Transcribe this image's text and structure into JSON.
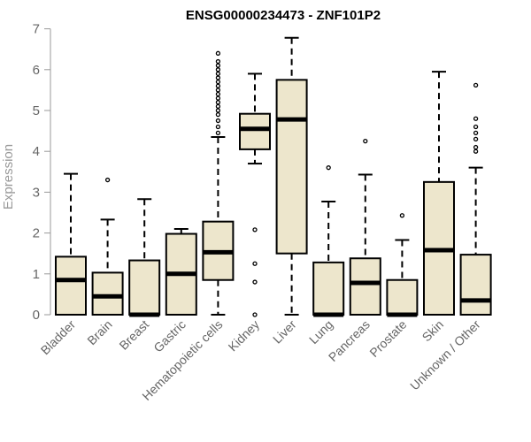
{
  "chart_data": {
    "type": "boxplot",
    "title": "ENSG00000234473 - ZNF101P2",
    "ylabel": "Expression",
    "xlabel": "",
    "ylim": [
      0,
      7
    ],
    "yticks": [
      0,
      1,
      2,
      3,
      4,
      5,
      6,
      7
    ],
    "grid": false,
    "box_fill": "#ede6cc",
    "categories": [
      "Bladder",
      "Brain",
      "Breast",
      "Gastric",
      "Hematopoietic cells",
      "Kidney",
      "Liver",
      "Lung",
      "Pancreas",
      "Prostate",
      "Skin",
      "Unknown / Other"
    ],
    "boxes": [
      {
        "min": 0,
        "q1": 0,
        "median": 0.85,
        "q3": 1.42,
        "max": 3.45,
        "outliers": []
      },
      {
        "min": 0,
        "q1": 0,
        "median": 0.45,
        "q3": 1.03,
        "max": 2.33,
        "outliers": [
          3.3
        ]
      },
      {
        "min": 0,
        "q1": 0,
        "median": 0,
        "q3": 1.33,
        "max": 2.83,
        "outliers": []
      },
      {
        "min": 0,
        "q1": 0,
        "median": 1.0,
        "q3": 1.98,
        "max": 2.1,
        "outliers": []
      },
      {
        "min": 0,
        "q1": 0.85,
        "median": 1.53,
        "q3": 2.28,
        "max": 4.35,
        "outliers": [
          4.45,
          4.6,
          4.75,
          4.9,
          5.0,
          5.1,
          5.2,
          5.3,
          5.4,
          5.5,
          5.6,
          5.7,
          5.8,
          5.9,
          6.0,
          6.1,
          6.2,
          6.4
        ]
      },
      {
        "min": 3.7,
        "q1": 4.05,
        "median": 4.55,
        "q3": 4.92,
        "max": 5.9,
        "outliers": [
          0,
          0.8,
          1.25,
          2.08
        ]
      },
      {
        "min": 0,
        "q1": 1.5,
        "median": 4.78,
        "q3": 5.75,
        "max": 6.78,
        "outliers": []
      },
      {
        "min": 0,
        "q1": 0,
        "median": 0,
        "q3": 1.28,
        "max": 2.77,
        "outliers": [
          3.6
        ]
      },
      {
        "min": 0,
        "q1": 0,
        "median": 0.78,
        "q3": 1.38,
        "max": 3.43,
        "outliers": [
          4.25
        ]
      },
      {
        "min": 0,
        "q1": 0,
        "median": 0,
        "q3": 0.85,
        "max": 1.83,
        "outliers": [
          2.43
        ]
      },
      {
        "min": 0,
        "q1": 0,
        "median": 1.58,
        "q3": 3.25,
        "max": 5.95,
        "outliers": []
      },
      {
        "min": 0,
        "q1": 0,
        "median": 0.35,
        "q3": 1.47,
        "max": 3.6,
        "outliers": [
          4.0,
          4.1,
          4.3,
          4.45,
          4.6,
          4.8,
          5.62
        ]
      }
    ]
  }
}
